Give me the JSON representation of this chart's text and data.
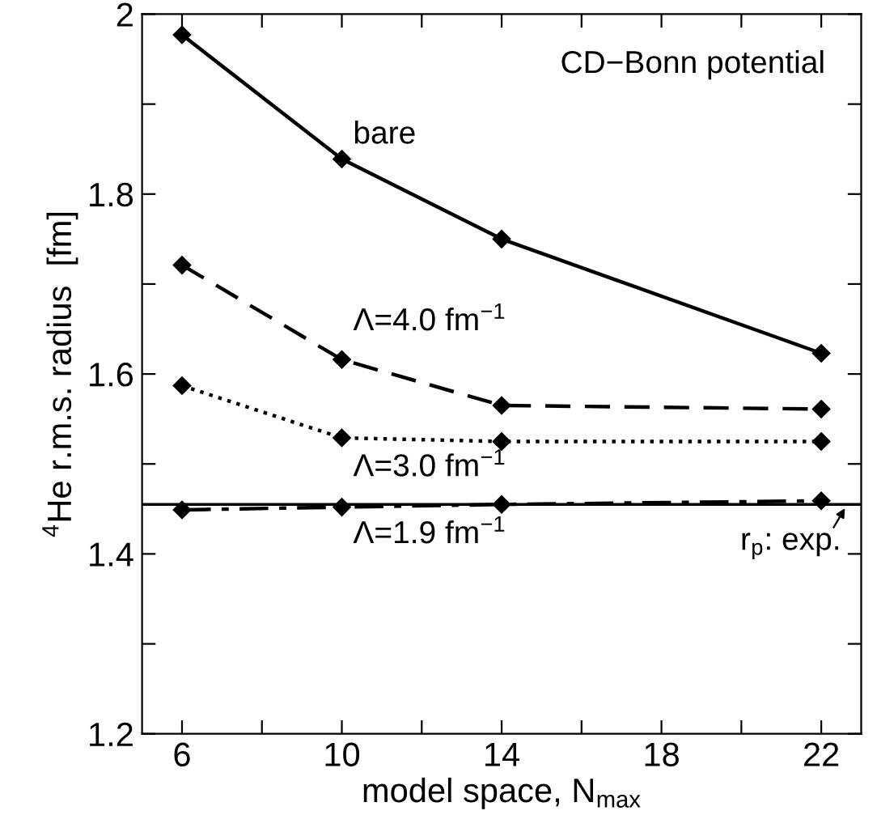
{
  "chart_data": {
    "type": "line",
    "x": [
      6,
      10,
      14,
      22
    ],
    "series": [
      {
        "name": "bare",
        "color": "#000000",
        "line_style": "solid",
        "values": [
          1.977,
          1.839,
          1.75,
          1.623
        ]
      },
      {
        "name": "Λ=4.0 fm$^{−1}$",
        "color": "#000000",
        "line_style": "dashed",
        "values": [
          1.721,
          1.616,
          1.565,
          1.561
        ]
      },
      {
        "name": "Λ=3.0 fm$^{−1}$",
        "color": "#000000",
        "line_style": "dotted",
        "values": [
          1.587,
          1.529,
          1.525,
          1.525
        ]
      },
      {
        "name": "Λ=1.9 fm$^{−1}$",
        "color": "#000000",
        "line_style": "dashdot",
        "values": [
          1.449,
          1.452,
          1.455,
          1.459
        ]
      }
    ],
    "marker": "diamond",
    "xlabel": "model space, N$_{max}$",
    "ylabel": "$^{4}$He r.m.s. radius  [fm]",
    "annotations": [
      "CD−Bonn potential"
    ],
    "ref_lines": [
      {
        "axis": "y",
        "value": 1.455,
        "label": "r$_{p}$: exp.",
        "color": "#000000",
        "line_style": "solid"
      }
    ],
    "xlim": [
      5,
      23
    ],
    "xticks": [
      6,
      {
        "value": 8,
        "label": null
      },
      10,
      {
        "value": 12,
        "label": null
      },
      14,
      {
        "value": 16,
        "label": null
      },
      18,
      {
        "value": 20,
        "label": null
      },
      22
    ],
    "ylim": [
      1.2,
      2.0
    ],
    "yticks": [
      1.2,
      {
        "value": 1.3,
        "label": null
      },
      1.4,
      {
        "value": 1.5,
        "label": null
      },
      1.6,
      {
        "value": 1.7,
        "label": null
      },
      1.8,
      {
        "value": 1.9,
        "label": null
      },
      {
        "value": 2.0,
        "label": "2"
      }
    ],
    "grid": false
  }
}
